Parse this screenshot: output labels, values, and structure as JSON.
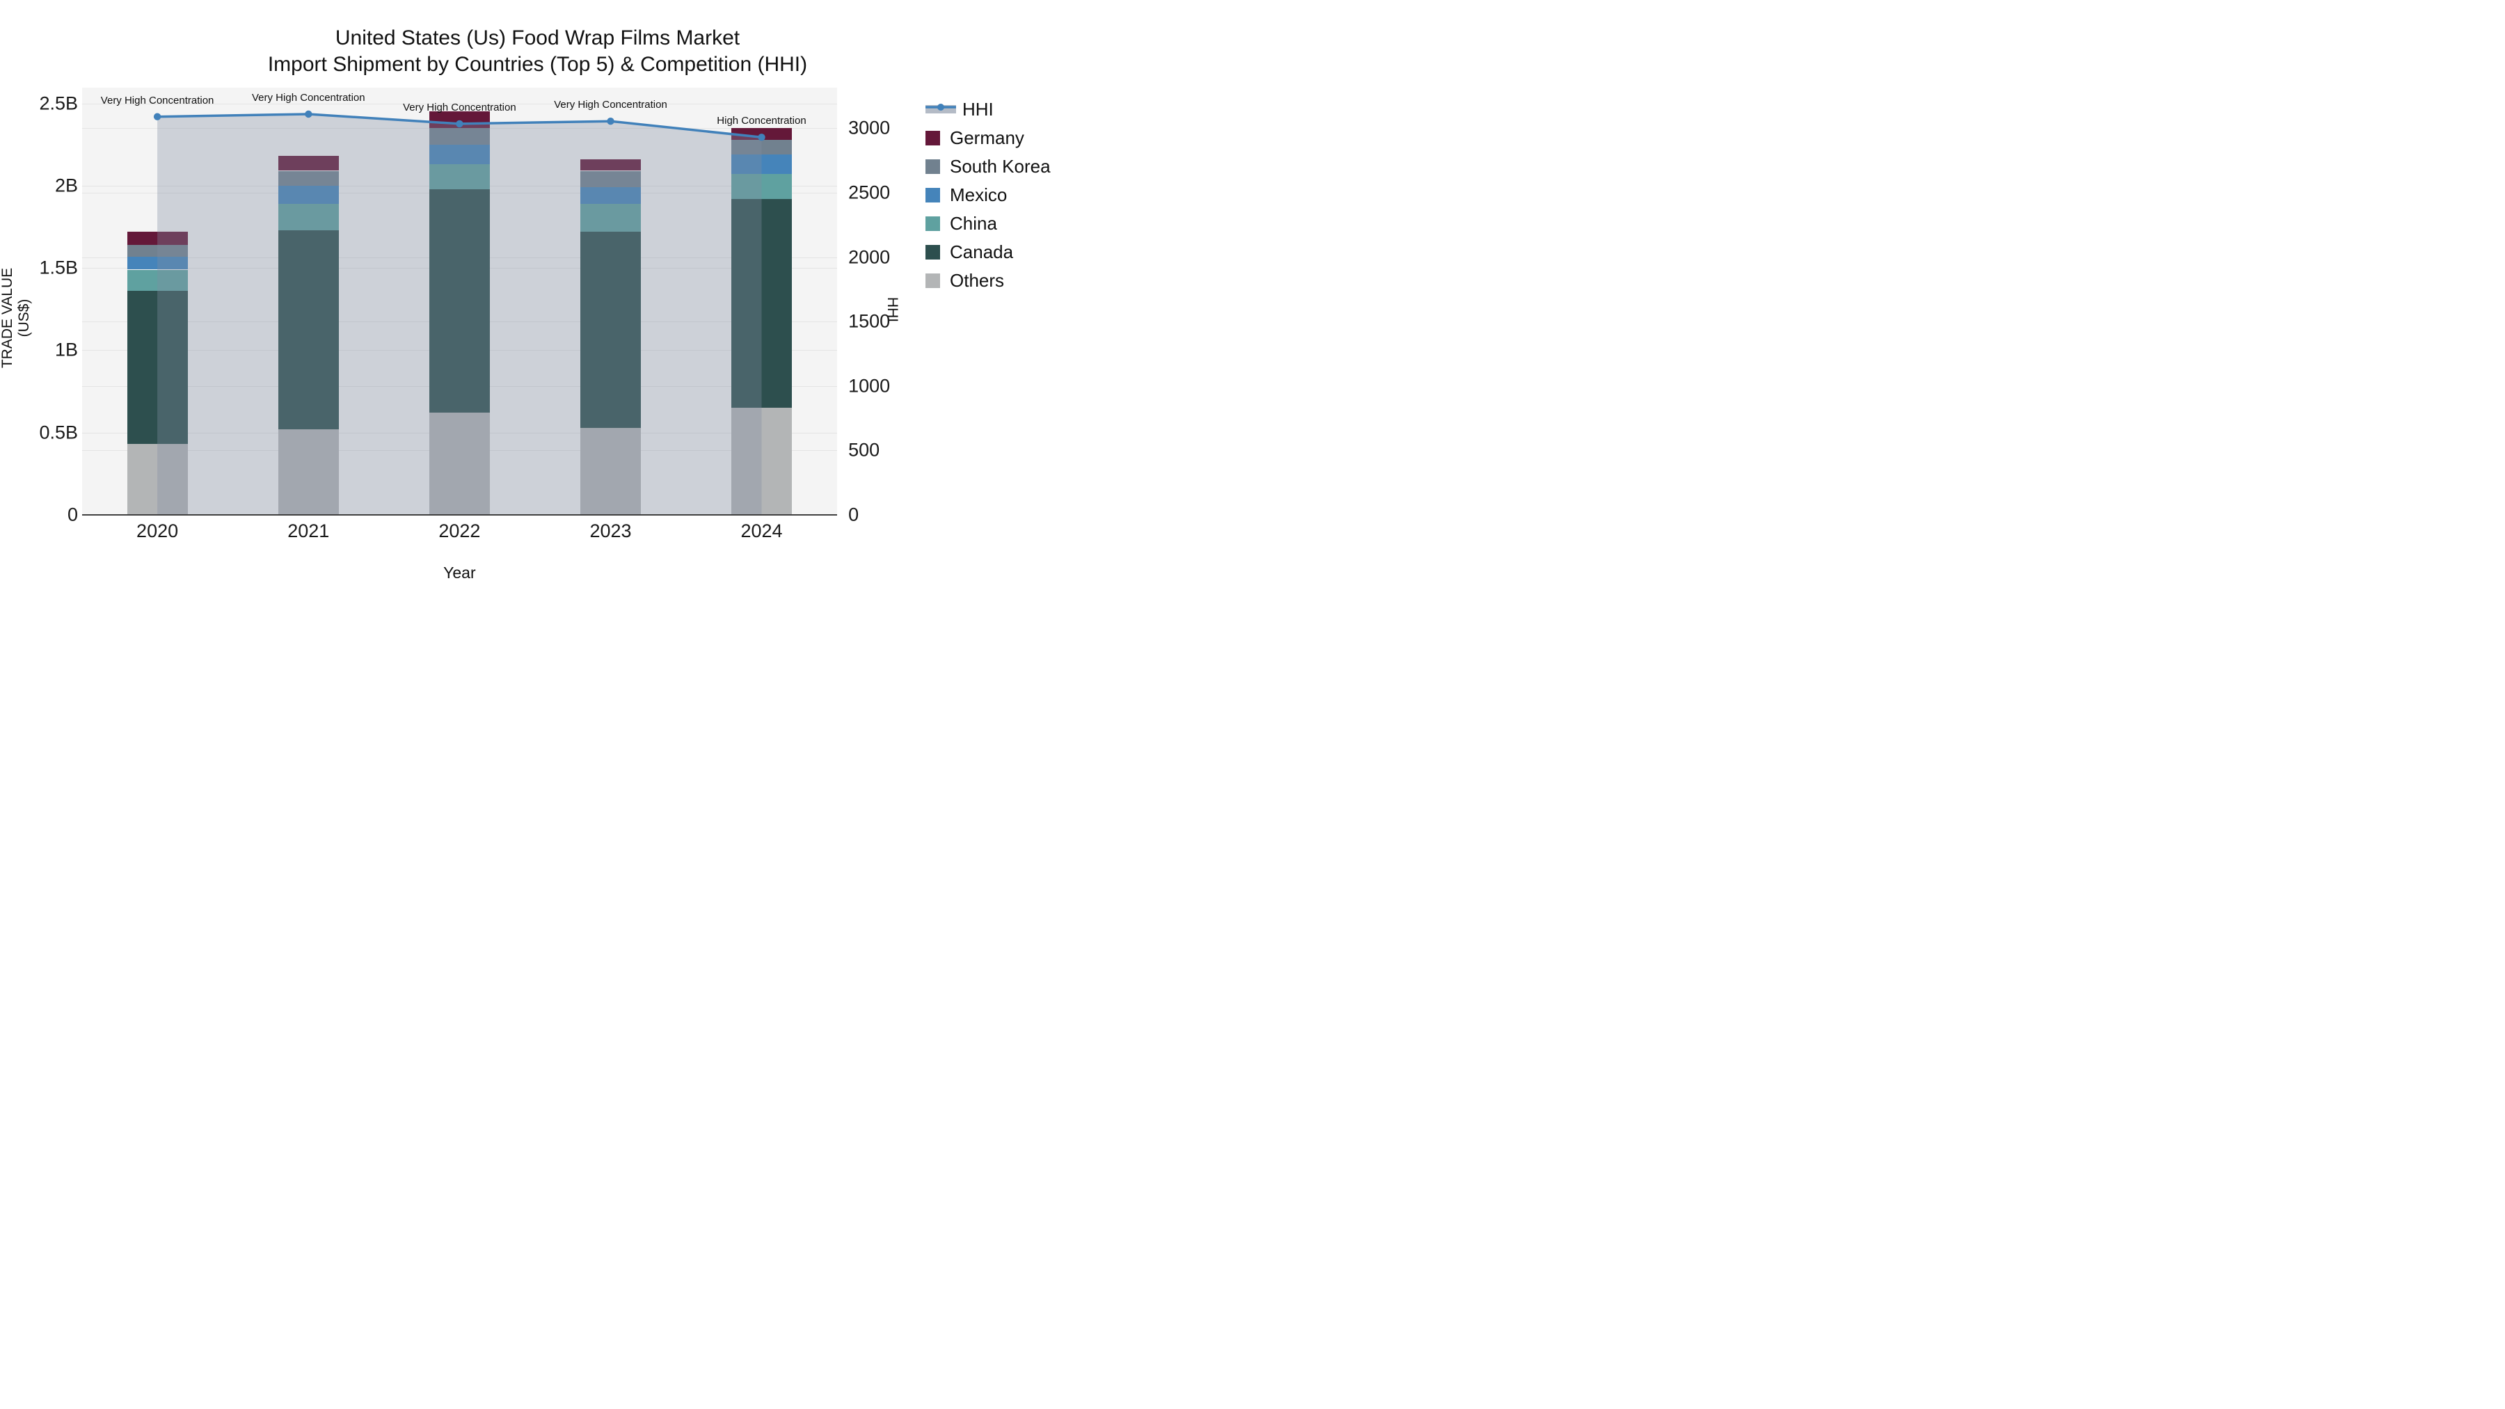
{
  "title": {
    "line1": "United States (Us) Food Wrap Films Market",
    "line2": "Import Shipment by Countries (Top 5) & Competition (HHI)"
  },
  "colors": {
    "plot_background": "#f4f4f4",
    "gridline": "#e4e4e4",
    "axis_line": "#3f3f3f",
    "hhi_line": "#4181ba",
    "hhi_area_fill": "rgba(130,142,160,0.34)",
    "germany": "#641839",
    "south_korea": "#71818f",
    "mexico": "#4584ba",
    "china": "#5fa1a0",
    "canada": "#2d4f4e",
    "others": "#b3b5b6"
  },
  "chart_data": {
    "type": "combo: stacked bar (left axis) + line (right axis)",
    "categories": [
      "2020",
      "2021",
      "2022",
      "2023",
      "2024"
    ],
    "bar_value_unit": "billions of US$",
    "series": [
      {
        "name": "Others",
        "color_key": "others",
        "values": [
          0.43,
          0.52,
          0.62,
          0.53,
          0.65
        ]
      },
      {
        "name": "Canada",
        "color_key": "canada",
        "values": [
          0.93,
          1.21,
          1.36,
          1.19,
          1.27
        ]
      },
      {
        "name": "China",
        "color_key": "china",
        "values": [
          0.13,
          0.16,
          0.15,
          0.17,
          0.15
        ]
      },
      {
        "name": "Mexico",
        "color_key": "mexico",
        "values": [
          0.08,
          0.11,
          0.12,
          0.1,
          0.12
        ]
      },
      {
        "name": "South Korea",
        "color_key": "south_korea",
        "values": [
          0.07,
          0.09,
          0.1,
          0.1,
          0.09
        ]
      },
      {
        "name": "Germany",
        "color_key": "germany",
        "values": [
          0.08,
          0.09,
          0.1,
          0.07,
          0.07
        ]
      }
    ],
    "line_series": {
      "name": "HHI",
      "axis": "right",
      "values": [
        3090,
        3110,
        3035,
        3055,
        2930
      ]
    },
    "point_annotations": [
      "Very High Concentration",
      "Very High Concentration",
      "Very High Concentration",
      "Very High Concentration",
      "High Concentration"
    ],
    "y_left": {
      "label": "TRADE VALUE (US$)",
      "tick_labels": [
        "0",
        "0.5B",
        "1B",
        "1.5B",
        "2B",
        "2.5B"
      ],
      "tick_values": [
        0,
        0.5,
        1.0,
        1.5,
        2.0,
        2.5
      ],
      "axis_max": 2.595
    },
    "y_right": {
      "label": "HHI",
      "tick_labels": [
        "0",
        "500",
        "1000",
        "1500",
        "2000",
        "2500",
        "3000"
      ],
      "tick_values": [
        0,
        500,
        1000,
        1500,
        2000,
        2500,
        3000
      ],
      "axis_max": 3315
    },
    "x_axis": {
      "label": "Year"
    },
    "legend": [
      {
        "label": "HHI",
        "swatch": "line",
        "color_key": "hhi_line"
      },
      {
        "label": "Germany",
        "swatch": "square",
        "color_key": "germany"
      },
      {
        "label": "South Korea",
        "swatch": "square",
        "color_key": "south_korea"
      },
      {
        "label": "Mexico",
        "swatch": "square",
        "color_key": "mexico"
      },
      {
        "label": "China",
        "swatch": "square",
        "color_key": "china"
      },
      {
        "label": "Canada",
        "swatch": "square",
        "color_key": "canada"
      },
      {
        "label": "Others",
        "swatch": "square",
        "color_key": "others"
      }
    ],
    "legend_position": "right"
  }
}
